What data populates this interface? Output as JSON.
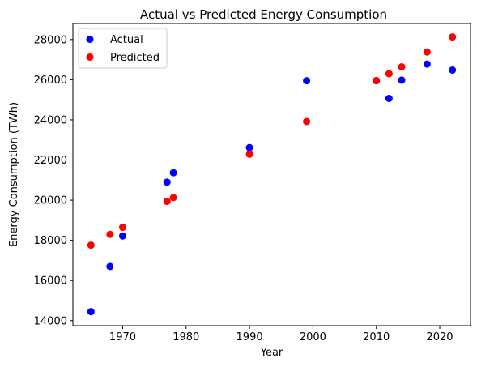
{
  "chart_data": {
    "type": "scatter",
    "title": "Actual vs Predicted Energy Consumption",
    "xlabel": "Year",
    "ylabel": "Energy Consumption (TWh)",
    "xlim": [
      1962.15,
      2024.85
    ],
    "ylim": [
      13750,
      28800
    ],
    "xticks": [
      1970,
      1980,
      1990,
      2000,
      2010,
      2020
    ],
    "xtick_labels": [
      "1970",
      "1980",
      "1990",
      "2000",
      "2010",
      "2020"
    ],
    "yticks": [
      14000,
      16000,
      18000,
      20000,
      22000,
      24000,
      26000,
      28000
    ],
    "ytick_labels": [
      "14000",
      "16000",
      "18000",
      "20000",
      "22000",
      "24000",
      "26000",
      "28000"
    ],
    "grid": false,
    "legend": "upper-left",
    "series": [
      {
        "name": "Actual",
        "color": "#0000ff",
        "x": [
          1965,
          1968,
          1970,
          1977,
          1978,
          1990,
          1999,
          2010,
          2012,
          2014,
          2018,
          2022
        ],
        "y": [
          14450,
          16700,
          18220,
          20900,
          21370,
          22620,
          25950,
          25950,
          25070,
          25980,
          26780,
          26480
        ]
      },
      {
        "name": "Predicted",
        "color": "#ff0000",
        "x": [
          1965,
          1968,
          1970,
          1977,
          1978,
          1990,
          1999,
          2010,
          2012,
          2014,
          2018,
          2022
        ],
        "y": [
          17760,
          18300,
          18650,
          19940,
          20130,
          22290,
          23920,
          25960,
          26300,
          26640,
          27380,
          28130
        ]
      }
    ]
  }
}
